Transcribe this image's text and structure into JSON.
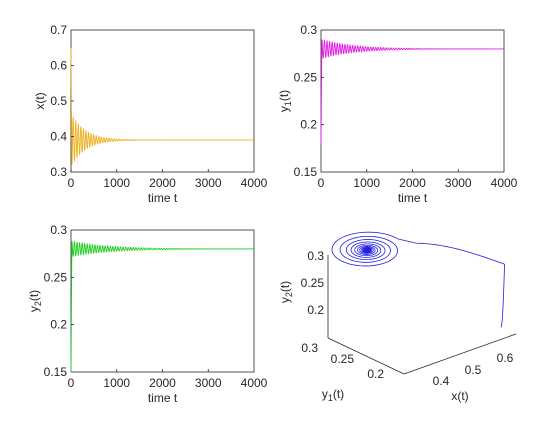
{
  "chart_data": [
    {
      "type": "line",
      "name": "x-time-series",
      "xlabel": "time t",
      "ylabel": "x(t)",
      "xlim": [
        0,
        4000
      ],
      "ylim": [
        0.3,
        0.7
      ],
      "xticks": [
        0,
        1000,
        2000,
        3000,
        4000
      ],
      "yticks": [
        0.3,
        0.4,
        0.5,
        0.6,
        0.7
      ],
      "xtick_labels": [
        "0",
        "1000",
        "2000",
        "3000",
        "4000"
      ],
      "ytick_labels": [
        "0.3",
        "0.4",
        "0.5",
        "0.6",
        "0.7"
      ],
      "color": "#edb120",
      "initial": 0.65,
      "equilibrium": 0.39,
      "first_min": 0.32,
      "first_max": 0.47,
      "period": 56,
      "settle_time": 1100
    },
    {
      "type": "line",
      "name": "y1-time-series",
      "xlabel": "time t",
      "ylabel": "y_1(t)",
      "xlim": [
        0,
        4000
      ],
      "ylim": [
        0.15,
        0.3
      ],
      "xticks": [
        0,
        1000,
        2000,
        3000,
        4000
      ],
      "yticks": [
        0.15,
        0.2,
        0.25,
        0.3
      ],
      "xtick_labels": [
        "0",
        "1000",
        "2000",
        "3000",
        "4000"
      ],
      "ytick_labels": [
        "0.15",
        "0.2",
        "0.25",
        "0.3"
      ],
      "color": "#e020e0",
      "initial": 0.18,
      "equilibrium": 0.28,
      "first_max": 0.29,
      "first_min": 0.268,
      "period": 56,
      "settle_time": 1100
    },
    {
      "type": "line",
      "name": "y2-time-series",
      "xlabel": "time t",
      "ylabel": "y_2(t)",
      "xlim": [
        0,
        4000
      ],
      "ylim": [
        0.15,
        0.3
      ],
      "xticks": [
        0,
        1000,
        2000,
        3000,
        4000
      ],
      "yticks": [
        0.15,
        0.2,
        0.25,
        0.3
      ],
      "xtick_labels": [
        "0",
        "1000",
        "2000",
        "3000",
        "4000"
      ],
      "ytick_labels": [
        "0.15",
        "0.2",
        "0.25",
        "0.3"
      ],
      "color": "#20d020",
      "initial": 0.15,
      "equilibrium": 0.28,
      "first_max": 0.288,
      "first_min": 0.268,
      "period": 56,
      "settle_time": 1100
    },
    {
      "type": "line",
      "name": "phase-portrait-3d",
      "xlabel": "x(t)",
      "ylabel": "y_1(t)",
      "zlabel": "y_2(t)",
      "xlim": [
        0.3,
        0.65
      ],
      "ylim": [
        0.15,
        0.3
      ],
      "zlim": [
        0.15,
        0.3
      ],
      "xticks": [
        0.4,
        0.5,
        0.6
      ],
      "yticks": [
        0.2,
        0.25,
        0.3
      ],
      "zticks": [
        0.2,
        0.25,
        0.3
      ],
      "xtick_labels": [
        "0.4",
        "0.5",
        "0.6"
      ],
      "ytick_labels": [
        "0.2",
        "0.25",
        "0.3"
      ],
      "ztick_labels": [
        "0.2",
        "0.25",
        "0.3"
      ],
      "color": "#2020e0",
      "start": [
        0.65,
        0.18,
        0.15
      ],
      "equilibrium": [
        0.39,
        0.28,
        0.28
      ]
    }
  ]
}
